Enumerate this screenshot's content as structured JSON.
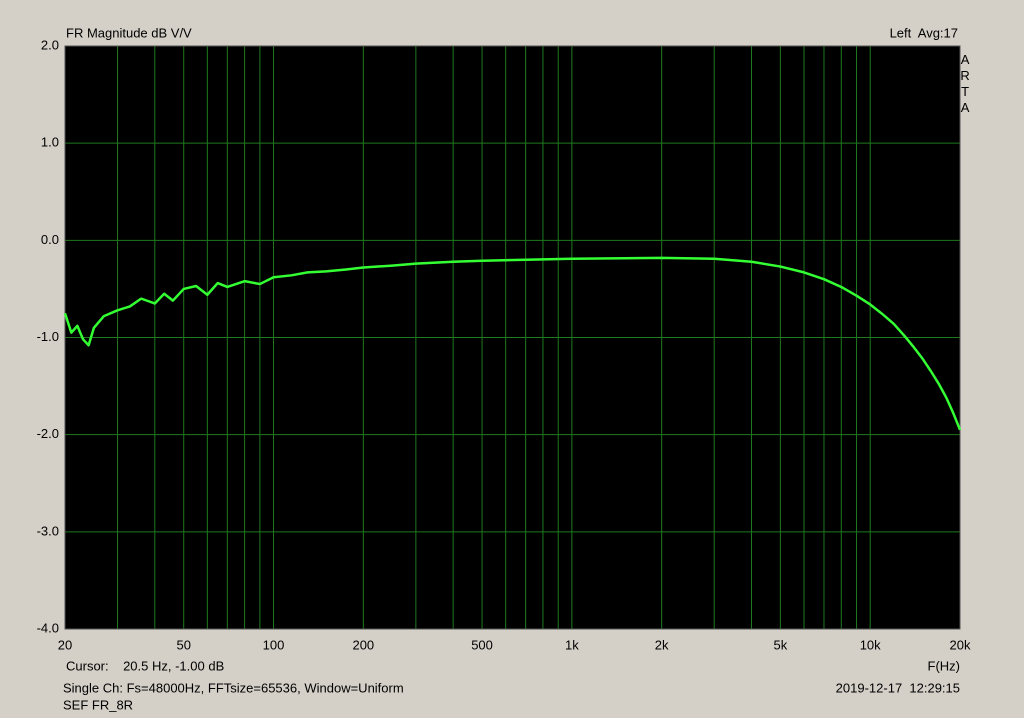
{
  "chart_data": {
    "type": "line",
    "title": "FR Magnitude dB V/V",
    "top_right": "Left  Avg:17",
    "brand": "ARTA",
    "x_label": "F(Hz)",
    "cursor": "Cursor:    20.5 Hz, -1.00 dB",
    "info": "Single Ch: Fs=48000Hz, FFTsize=65536, Window=Uniform",
    "timestamp": "2019-12-17  12:29:15",
    "file_name": "SEF FR_8R",
    "x_scale": "log",
    "grid": true,
    "xlim": [
      20,
      20000
    ],
    "ylim": [
      -4,
      2
    ],
    "xticks": [
      20,
      50,
      100,
      200,
      500,
      {
        "value": 1000,
        "label": "1k"
      },
      {
        "value": 2000,
        "label": "2k"
      },
      {
        "value": 5000,
        "label": "5k"
      },
      {
        "value": 10000,
        "label": "10k"
      },
      {
        "value": 20000,
        "label": "20k"
      }
    ],
    "xminorticks": [
      30,
      40,
      60,
      70,
      80,
      90,
      300,
      400,
      600,
      700,
      800,
      900,
      3000,
      4000,
      6000,
      7000,
      8000,
      9000
    ],
    "yticks": [
      {
        "value": 2,
        "label": "2.0"
      },
      {
        "value": 1,
        "label": "1.0"
      },
      {
        "value": 0,
        "label": "0.0"
      },
      {
        "value": -1,
        "label": "-1.0"
      },
      {
        "value": -2,
        "label": "-2.0"
      },
      {
        "value": -3,
        "label": "-3.0"
      },
      {
        "value": -4,
        "label": "-4.0"
      }
    ],
    "x": [
      20,
      21,
      22,
      23,
      24,
      25,
      27,
      30,
      33,
      36,
      40,
      43,
      46,
      50,
      55,
      60,
      65,
      70,
      80,
      90,
      100,
      115,
      130,
      150,
      175,
      200,
      250,
      300,
      400,
      500,
      700,
      1000,
      1500,
      2000,
      3000,
      4000,
      5000,
      6000,
      7000,
      8000,
      9000,
      10000,
      11000,
      12000,
      13000,
      14000,
      15000,
      16000,
      17000,
      18000,
      19000,
      20000
    ],
    "series": [
      {
        "name": "FR",
        "color": "#33ff33",
        "values": [
          -0.75,
          -0.95,
          -0.88,
          -1.02,
          -1.08,
          -0.9,
          -0.78,
          -0.72,
          -0.68,
          -0.6,
          -0.65,
          -0.55,
          -0.62,
          -0.5,
          -0.47,
          -0.56,
          -0.44,
          -0.48,
          -0.42,
          -0.45,
          -0.38,
          -0.36,
          -0.33,
          -0.32,
          -0.3,
          -0.28,
          -0.26,
          -0.24,
          -0.22,
          -0.21,
          -0.2,
          -0.19,
          -0.185,
          -0.18,
          -0.19,
          -0.22,
          -0.27,
          -0.33,
          -0.4,
          -0.48,
          -0.57,
          -0.66,
          -0.76,
          -0.86,
          -0.98,
          -1.1,
          -1.22,
          -1.35,
          -1.48,
          -1.62,
          -1.78,
          -1.95
        ]
      }
    ]
  }
}
